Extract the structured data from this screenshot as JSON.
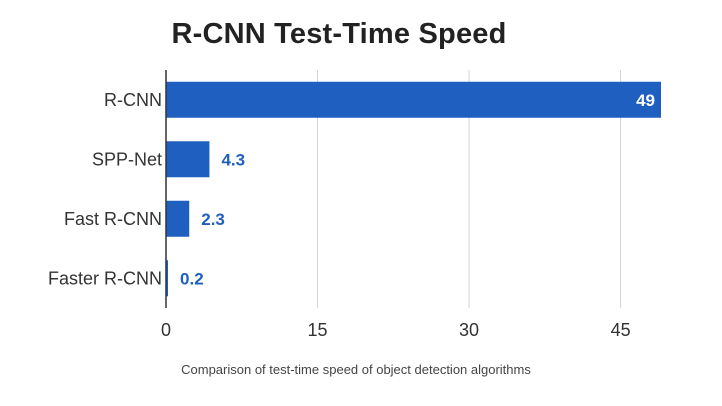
{
  "caption": "Comparison of test-time speed of object detection algorithms",
  "chart_data": {
    "type": "bar",
    "orientation": "horizontal",
    "title": "R-CNN Test-Time Speed",
    "categories": [
      "R-CNN",
      "SPP-Net",
      "Fast R-CNN",
      "Faster R-CNN"
    ],
    "values": [
      49,
      4.3,
      2.3,
      0.2
    ],
    "value_labels": [
      "49",
      "4.3",
      "2.3",
      "0.2"
    ],
    "xlim": [
      0,
      49
    ],
    "xticks": [
      0,
      15,
      30,
      45
    ],
    "xtick_labels": [
      "0",
      "15",
      "30",
      "45"
    ],
    "grid": true,
    "bar_color": "#1f5fbf",
    "label_inside_color": "#ffffff",
    "label_outside_color": "#1f5fbf"
  }
}
